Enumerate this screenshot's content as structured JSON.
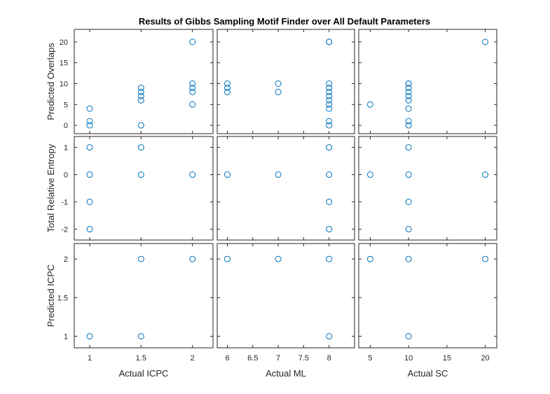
{
  "chart_data": {
    "type": "scatter",
    "title": "Results of Gibbs Sampling Motif Finder over All Default Parameters",
    "marker_color": "#0072BD",
    "axis_color": "#262626",
    "columns": [
      {
        "xlabel": "Actual ICPC",
        "xlim": [
          0.85,
          2.2
        ],
        "xticks": [
          1,
          1.5,
          2
        ],
        "xtick_labels": [
          "1",
          "1.5",
          "2"
        ]
      },
      {
        "xlabel": "Actual ML",
        "xlim": [
          5.8,
          8.5
        ],
        "xticks": [
          6,
          6.5,
          7,
          7.5,
          8
        ],
        "xtick_labels": [
          "6",
          "6.5",
          "7",
          "7.5",
          "8"
        ]
      },
      {
        "xlabel": "Actual SC",
        "xlim": [
          3.5,
          21.5
        ],
        "xticks": [
          5,
          10,
          15,
          20
        ],
        "xtick_labels": [
          "5",
          "10",
          "15",
          "20"
        ]
      }
    ],
    "rows": [
      {
        "ylabel": "Predicted Overlaps",
        "ylim": [
          -2,
          23
        ],
        "yticks": [
          0,
          5,
          10,
          15,
          20
        ],
        "ytick_labels": [
          "0",
          "5",
          "10",
          "15",
          "20"
        ]
      },
      {
        "ylabel": "Total Relative Entropy",
        "ylim": [
          -2.4,
          1.4
        ],
        "yticks": [
          -2,
          -1,
          0,
          1
        ],
        "ytick_labels": [
          "-2",
          "-1",
          "0",
          "1"
        ]
      },
      {
        "ylabel": "Predicted ICPC",
        "ylim": [
          0.85,
          2.2
        ],
        "yticks": [
          1,
          1.5,
          2
        ],
        "ytick_labels": [
          "1",
          "1.5",
          "2"
        ]
      }
    ],
    "panels": [
      [
        {
          "x": [
            1,
            1,
            1,
            1.5,
            1.5,
            1.5,
            1.5,
            1.5,
            2,
            2,
            2,
            2,
            2
          ],
          "y": [
            0,
            1,
            4,
            0,
            6,
            7,
            8,
            9,
            5,
            8,
            9,
            10,
            20
          ]
        },
        {
          "x": [
            6,
            6,
            6,
            7,
            7,
            8,
            8,
            8,
            8,
            8,
            8,
            8,
            8,
            8,
            8,
            8
          ],
          "y": [
            8,
            9,
            10,
            8,
            10,
            0,
            1,
            4,
            5,
            6,
            7,
            8,
            9,
            10,
            20,
            20
          ]
        },
        {
          "x": [
            5,
            10,
            10,
            10,
            10,
            10,
            10,
            10,
            10,
            10,
            20
          ],
          "y": [
            5,
            0,
            1,
            4,
            6,
            7,
            8,
            9,
            10,
            10,
            20
          ]
        }
      ],
      [
        {
          "x": [
            1,
            1,
            1,
            1,
            1.5,
            1.5,
            2
          ],
          "y": [
            -2,
            -1,
            0,
            1,
            0,
            1,
            0
          ]
        },
        {
          "x": [
            6,
            7,
            8,
            8,
            8,
            8
          ],
          "y": [
            0,
            0,
            -2,
            -1,
            0,
            1
          ]
        },
        {
          "x": [
            5,
            10,
            10,
            10,
            10,
            20
          ],
          "y": [
            0,
            -2,
            -1,
            0,
            1,
            0
          ]
        }
      ],
      [
        {
          "x": [
            1,
            1.5,
            1.5,
            2
          ],
          "y": [
            1,
            1,
            2,
            2
          ]
        },
        {
          "x": [
            6,
            7,
            8,
            8
          ],
          "y": [
            2,
            2,
            1,
            2
          ]
        },
        {
          "x": [
            5,
            10,
            10,
            20
          ],
          "y": [
            2,
            1,
            2,
            2
          ]
        }
      ]
    ]
  }
}
